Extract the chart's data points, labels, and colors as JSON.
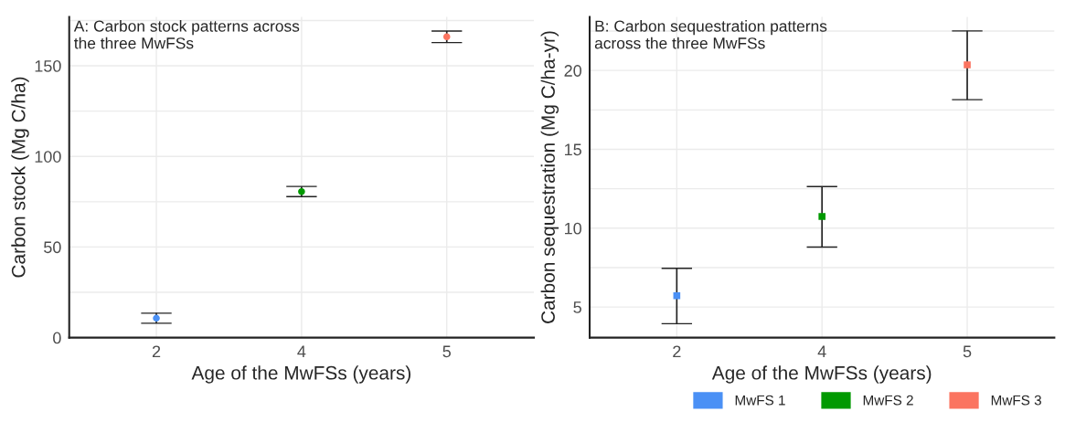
{
  "chart_data": [
    {
      "type": "scatter",
      "title": "A: Carbon stock patterns across\nthe three MwFSs",
      "xlabel": "Age of the MwFSs (years)",
      "ylabel": "Carbon stock (Mg C/ha)",
      "categories": [
        "2",
        "4",
        "5"
      ],
      "marker": "circle",
      "grid": true,
      "ylim": [
        0,
        177
      ],
      "yticks": [
        0,
        {
          "value": 25,
          "label": null
        },
        50,
        {
          "value": 75,
          "label": null
        },
        100,
        {
          "value": 125,
          "label": null
        },
        150,
        {
          "value": 175,
          "label": null
        }
      ],
      "series": [
        {
          "color": "#4a90f5",
          "values": [
            10.7,
            null,
            null
          ],
          "errors": [
            2.8,
            null,
            null
          ]
        },
        {
          "color": "#009900",
          "values": [
            null,
            80.6,
            null
          ],
          "errors": [
            null,
            2.8,
            null
          ]
        },
        {
          "color": "#fb7460",
          "values": [
            null,
            null,
            166
          ],
          "errors": [
            null,
            null,
            3.2
          ]
        }
      ]
    },
    {
      "type": "scatter",
      "title": "B: Carbon sequestration patterns\nacross the three MwFSs",
      "xlabel": "Age of the MwFSs (years)",
      "ylabel": "Carbon sequestration (Mg C/ha-yr)",
      "categories": [
        "2",
        "4",
        "5"
      ],
      "marker": "square",
      "grid": true,
      "legend": "bottom right",
      "ylim": [
        3.06,
        23.4
      ],
      "yticks": [
        5,
        {
          "value": 7.5,
          "label": null
        },
        10,
        {
          "value": 12.5,
          "label": null
        },
        15,
        {
          "value": 17.5,
          "label": null
        },
        20,
        {
          "value": 22.5,
          "label": null
        }
      ],
      "series": [
        {
          "name": "MwFS 1",
          "color": "#4a90f5",
          "values": [
            5.72,
            null,
            null
          ],
          "errors": [
            [
              3.94,
              7.45
            ],
            null,
            null
          ]
        },
        {
          "name": "MwFS 2",
          "color": "#009900",
          "values": [
            null,
            10.74,
            null
          ],
          "errors": [
            null,
            [
              8.8,
              12.64
            ],
            null
          ]
        },
        {
          "name": "MwFS 3",
          "color": "#fb7460",
          "values": [
            null,
            null,
            20.36
          ],
          "errors": [
            null,
            null,
            [
              18.15,
              22.51
            ]
          ]
        }
      ]
    }
  ]
}
